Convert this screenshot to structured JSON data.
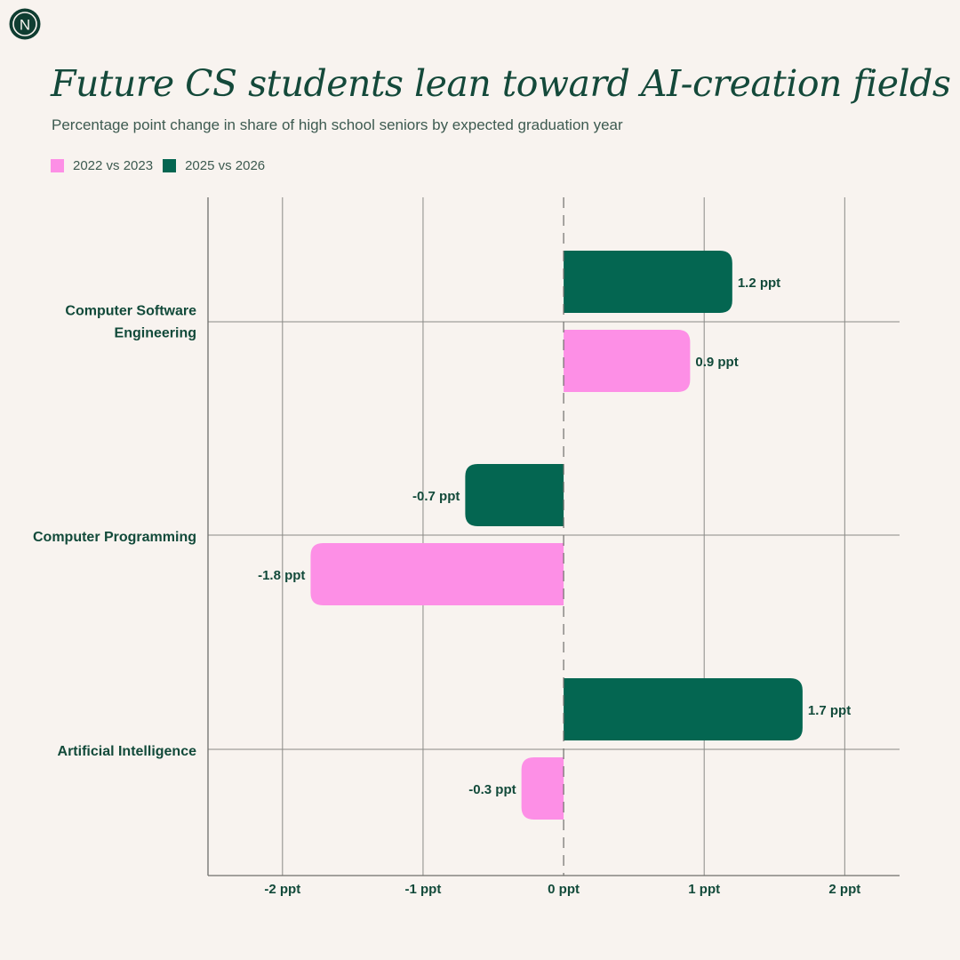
{
  "logo_text": "N",
  "title": "Future CS students lean toward AI-creation fields",
  "subtitle": "Percentage point change in share of high school seniors by expected graduation year",
  "colors": {
    "background": "#f8f3ef",
    "text": "#124a3a",
    "series_2022": "#fd8fe6",
    "series_2025": "#046651"
  },
  "chart_data": {
    "type": "bar",
    "orientation": "horizontal",
    "categories": [
      "Computer Software Engineering",
      "Computer Programming",
      "Artificial Intelligence"
    ],
    "category_labels": [
      [
        "Computer Software",
        "Engineering"
      ],
      [
        "Computer Programming"
      ],
      [
        "Artificial Intelligence"
      ]
    ],
    "series": [
      {
        "name": "2025 vs 2026",
        "color": "#046651",
        "values": [
          1.2,
          -0.7,
          1.7
        ],
        "labels": [
          "1.2 ppt",
          "-0.7 ppt",
          "1.7 ppt"
        ]
      },
      {
        "name": "2022 vs 2023",
        "color": "#fd8fe6",
        "values": [
          0.9,
          -1.8,
          -0.3
        ],
        "labels": [
          "0.9 ppt",
          "-1.8 ppt",
          "-0.3 ppt"
        ]
      }
    ],
    "legend": [
      {
        "name": "2022 vs 2023",
        "color": "#fd8fe6"
      },
      {
        "name": "2025 vs 2026",
        "color": "#046651"
      }
    ],
    "legend_placement": "top-left",
    "x_ticks": [
      -2,
      -1,
      0,
      1,
      2
    ],
    "x_tick_labels": [
      "-2 ppt",
      "-1 ppt",
      "0 ppt",
      "1 ppt",
      "2 ppt"
    ],
    "xlim": [
      -2.53,
      2.39
    ],
    "grid": true,
    "zero_line": "dashed"
  }
}
